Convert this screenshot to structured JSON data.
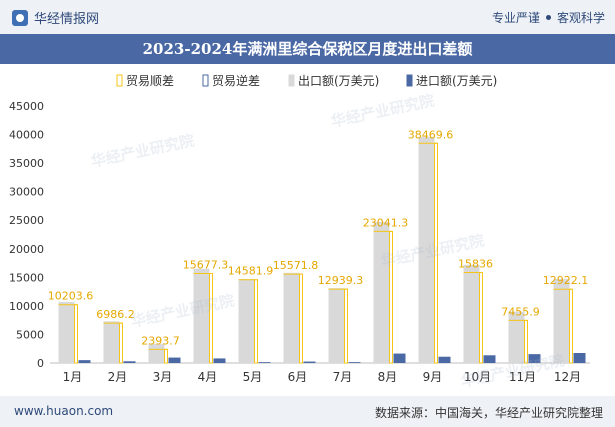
{
  "header": {
    "brand": "华经情报网",
    "tagline_left": "专业严谨",
    "tagline_right": "客观科学"
  },
  "footer": {
    "site": "www.huaon.com",
    "source": "数据来源：中国海关，华经产业研究院整理"
  },
  "watermark": "华经产业研究院",
  "colors": {
    "surplus": "#f5c518",
    "deficit": "#4a68a4",
    "export": "#d9d9d9",
    "import": "#4a68a4",
    "title_bg": "#4a68a4"
  },
  "chart_data": {
    "type": "bar",
    "title": "2023-2024年满洲里综合保税区月度进出口差额",
    "categories": [
      "1月",
      "2月",
      "3月",
      "4月",
      "5月",
      "6月",
      "7月",
      "8月",
      "9月",
      "10月",
      "11月",
      "12月"
    ],
    "series": [
      {
        "name": "贸易顺差",
        "values": [
          10203.6,
          6986.2,
          2393.7,
          15677.3,
          14581.9,
          15571.8,
          12939.3,
          23041.3,
          38469.6,
          15836,
          7455.9,
          12922.1
        ]
      },
      {
        "name": "贸易逆差",
        "values": [
          0,
          0,
          0,
          0,
          0,
          0,
          0,
          0,
          0,
          0,
          0,
          0
        ]
      },
      {
        "name": "出口额(万美元)",
        "values": [
          10700,
          7300,
          3350,
          16500,
          14700,
          15800,
          13100,
          24700,
          39600,
          17200,
          9000,
          14700
        ]
      },
      {
        "name": "进口额(万美元)",
        "values": [
          500,
          300,
          950,
          800,
          150,
          250,
          150,
          1650,
          1100,
          1350,
          1550,
          1750
        ]
      }
    ],
    "data_labels": [
      "10203.6",
      "6986.2",
      "2393.7",
      "15677.3",
      "14581.9",
      "15571.8",
      "12939.3",
      "23041.3",
      "38469.6",
      "15836",
      "7455.9",
      "12922.1"
    ],
    "ylim": [
      0,
      45000
    ],
    "yticks": [
      0,
      5000,
      10000,
      15000,
      20000,
      25000,
      30000,
      35000,
      40000,
      45000
    ],
    "legend_position": "top-center",
    "grid": false
  }
}
